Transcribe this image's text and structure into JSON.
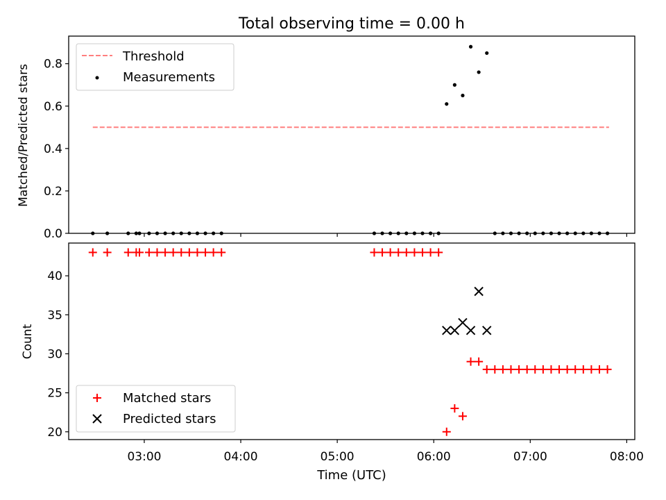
{
  "chart_data": [
    {
      "type": "scatter",
      "title": "Total observing time = 0.00 h",
      "xlabel": "",
      "ylabel": "Matched/Predicted stars",
      "xlim": [
        "02:13",
        "08:05"
      ],
      "ylim": [
        0,
        0.93
      ],
      "yticks": [
        "0.0",
        "0.2",
        "0.4",
        "0.6",
        "0.8"
      ],
      "legend_position": "upper left",
      "threshold": {
        "name": "Threshold",
        "value": 0.5,
        "x_range": [
          "02:28",
          "07:49"
        ],
        "color": "#ff7f7f"
      },
      "series": [
        {
          "name": "Measurements",
          "color": "#000000",
          "x": [
            "02:28",
            "02:37",
            "02:50",
            "02:55",
            "02:57",
            "03:03",
            "03:08",
            "03:13",
            "03:18",
            "03:23",
            "03:28",
            "03:33",
            "03:38",
            "03:43",
            "03:48",
            "05:23",
            "05:28",
            "05:33",
            "05:38",
            "05:43",
            "05:48",
            "05:53",
            "05:58",
            "06:03",
            "06:08",
            "06:13",
            "06:18",
            "06:23",
            "06:28",
            "06:33",
            "06:38",
            "06:43",
            "06:48",
            "06:53",
            "06:58",
            "07:03",
            "07:08",
            "07:13",
            "07:18",
            "07:23",
            "07:28",
            "07:33",
            "07:38",
            "07:43",
            "07:48"
          ],
          "y": [
            0,
            0,
            0,
            0,
            0,
            0,
            0,
            0,
            0,
            0,
            0,
            0,
            0,
            0,
            0,
            0,
            0,
            0,
            0,
            0,
            0,
            0,
            0,
            0,
            0.61,
            0.7,
            0.65,
            0.88,
            0.76,
            0.85,
            0,
            0,
            0,
            0,
            0,
            0,
            0,
            0,
            0,
            0,
            0,
            0,
            0,
            0,
            0
          ]
        }
      ]
    },
    {
      "type": "scatter",
      "title": "",
      "xlabel": "Time (UTC)",
      "ylabel": "Count",
      "xlim": [
        "02:13",
        "08:05"
      ],
      "ylim": [
        19,
        44.2
      ],
      "yticks": [
        "20",
        "25",
        "30",
        "35",
        "40"
      ],
      "xticks": [
        "03:00",
        "04:00",
        "05:00",
        "06:00",
        "07:00",
        "08:00"
      ],
      "legend_position": "lower left",
      "series": [
        {
          "name": "Matched stars",
          "color": "#ff0000",
          "marker": "+",
          "x": [
            "02:28",
            "02:37",
            "02:50",
            "02:55",
            "02:57",
            "03:03",
            "03:08",
            "03:13",
            "03:18",
            "03:23",
            "03:28",
            "03:33",
            "03:38",
            "03:43",
            "03:48",
            "05:23",
            "05:28",
            "05:33",
            "05:38",
            "05:43",
            "05:48",
            "05:53",
            "05:58",
            "06:03",
            "06:08",
            "06:13",
            "06:18",
            "06:23",
            "06:28",
            "06:33",
            "06:38",
            "06:43",
            "06:48",
            "06:53",
            "06:58",
            "07:03",
            "07:08",
            "07:13",
            "07:18",
            "07:23",
            "07:28",
            "07:33",
            "07:38",
            "07:43",
            "07:48"
          ],
          "y": [
            43,
            43,
            43,
            43,
            43,
            43,
            43,
            43,
            43,
            43,
            43,
            43,
            43,
            43,
            43,
            43,
            43,
            43,
            43,
            43,
            43,
            43,
            43,
            43,
            20,
            23,
            22,
            29,
            29,
            28,
            28,
            28,
            28,
            28,
            28,
            28,
            28,
            28,
            28,
            28,
            28,
            28,
            28,
            28,
            28
          ]
        },
        {
          "name": "Predicted stars",
          "color": "#000000",
          "marker": "x",
          "x": [
            "06:08",
            "06:13",
            "06:18",
            "06:23",
            "06:28",
            "06:33"
          ],
          "y": [
            33,
            33,
            34,
            33,
            38,
            33
          ]
        }
      ]
    }
  ]
}
